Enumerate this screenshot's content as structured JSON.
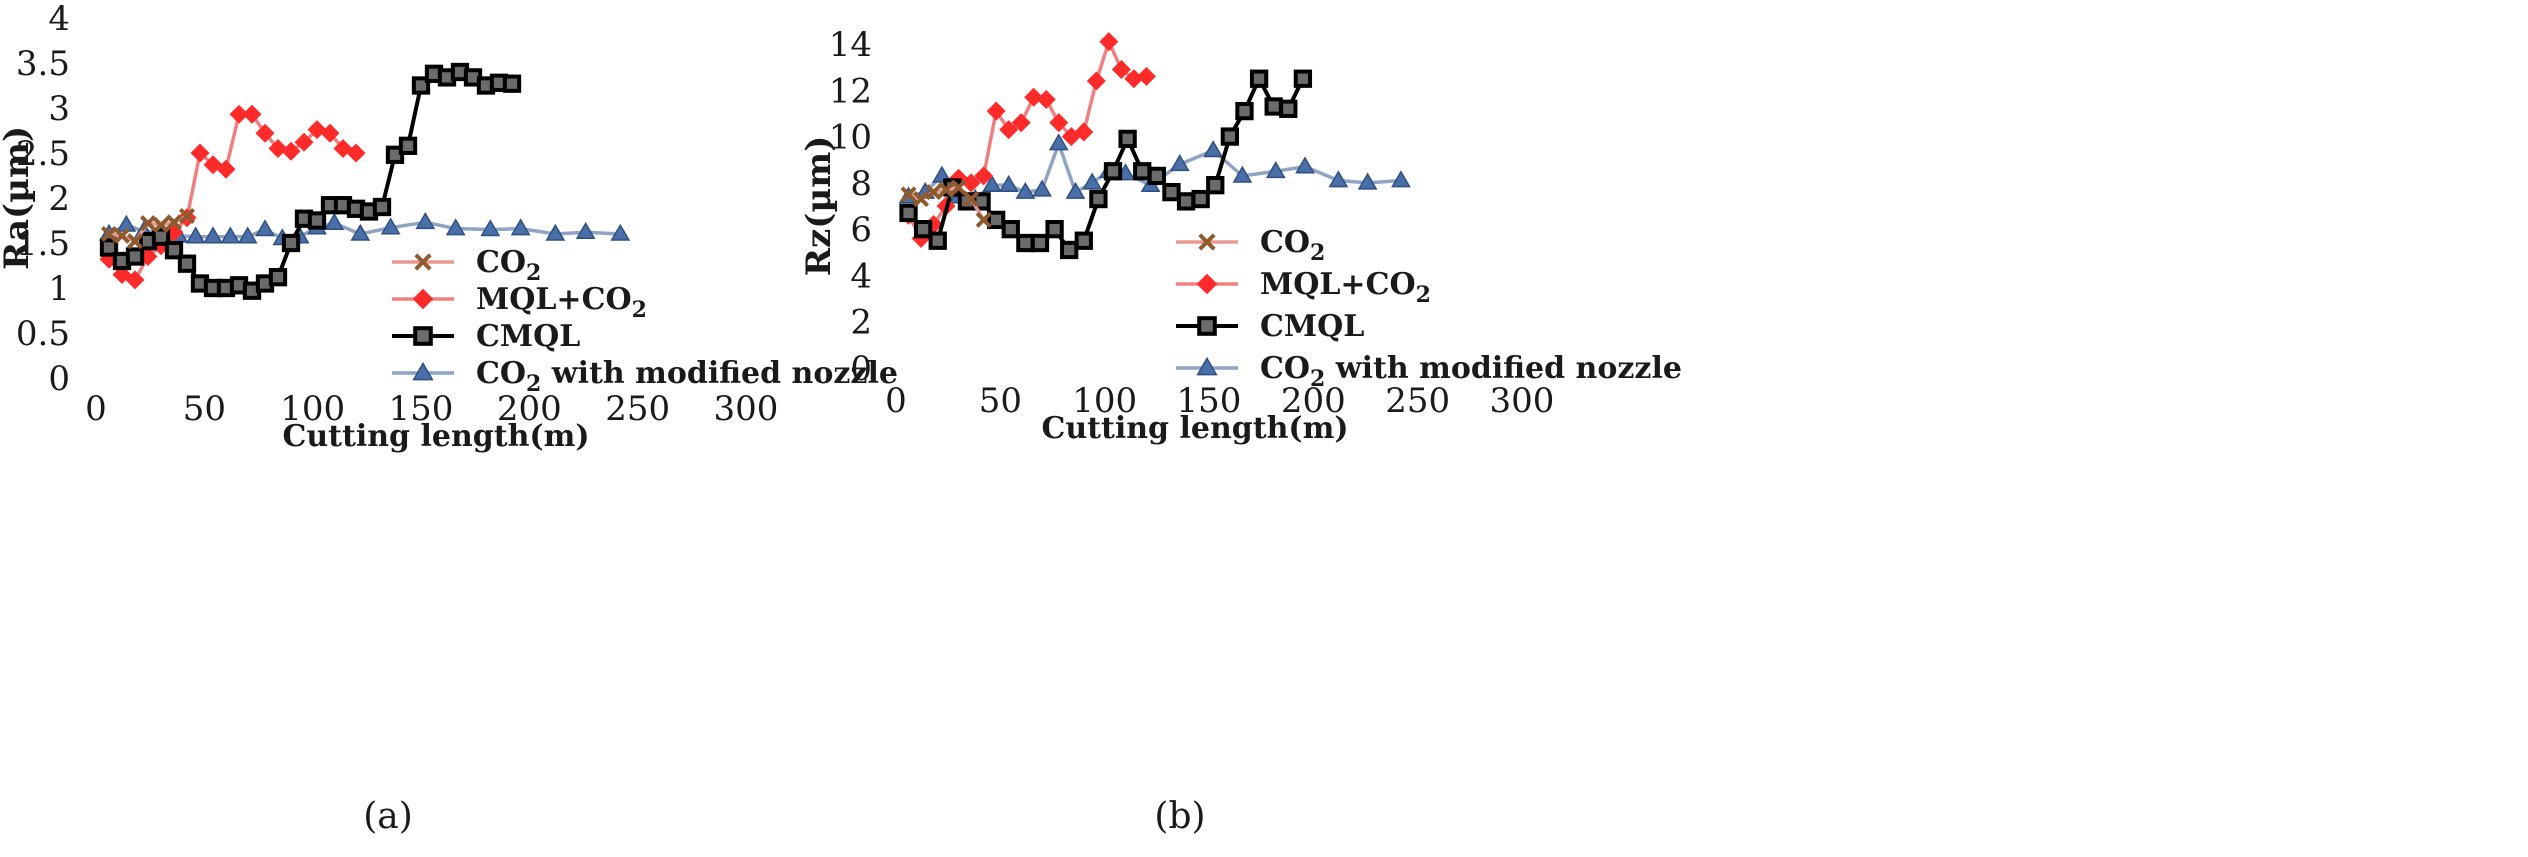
{
  "chart_data": [
    {
      "type": "line",
      "caption": "(a)",
      "ylabel": "Ra(µm)",
      "xlabel": "Cutting length(m)",
      "xlim": [
        0,
        300
      ],
      "ylim": [
        0,
        4
      ],
      "xticks": [
        0,
        50,
        100,
        150,
        200,
        250,
        300
      ],
      "yticks": [
        0,
        0.5,
        1,
        1.5,
        2,
        2.5,
        3,
        3.5,
        4
      ],
      "ytick_labels": [
        "0",
        "0.5",
        "1",
        "1.5",
        "2",
        "2.5",
        "3",
        "3.5",
        "4"
      ],
      "grid": false,
      "legend_position": "center-right",
      "series": [
        {
          "name": "CO2",
          "label_main": "CO",
          "label_sub": "2",
          "label_after": "",
          "label_suffix": "",
          "color": "#c0783e",
          "marker": "x",
          "x": [
            6,
            12,
            18,
            24,
            30,
            36,
            42
          ],
          "y": [
            1.6,
            1.58,
            1.52,
            1.72,
            1.7,
            1.73,
            1.8
          ]
        },
        {
          "name": "MQL+CO2",
          "label_main": "MQL+CO",
          "label_sub": "2",
          "label_after": "",
          "label_suffix": "",
          "color": "#ff2a2a",
          "marker": "diamond",
          "x": [
            6,
            12,
            18,
            24,
            30,
            36,
            42,
            48,
            54,
            60,
            66,
            72,
            78,
            84,
            90,
            96,
            102,
            108,
            114,
            120
          ],
          "y": [
            1.32,
            1.15,
            1.09,
            1.35,
            1.47,
            1.62,
            1.78,
            2.5,
            2.37,
            2.32,
            2.93,
            2.93,
            2.72,
            2.55,
            2.52,
            2.62,
            2.76,
            2.72,
            2.55,
            2.5
          ]
        },
        {
          "name": "CMQL",
          "label_main": "CMQL",
          "label_sub": "",
          "label_after": "",
          "label_suffix": "",
          "color": "#111111",
          "marker": "square",
          "x": [
            6,
            12,
            18,
            24,
            30,
            36,
            42,
            48,
            54,
            60,
            66,
            72,
            78,
            84,
            90,
            96,
            102,
            108,
            114,
            120,
            126,
            132,
            138,
            144,
            150,
            156,
            162,
            168,
            174,
            180,
            186,
            192
          ],
          "y": [
            1.45,
            1.3,
            1.35,
            1.52,
            1.57,
            1.42,
            1.27,
            1.05,
            1.0,
            1.0,
            1.03,
            0.97,
            1.05,
            1.12,
            1.5,
            1.77,
            1.75,
            1.92,
            1.92,
            1.88,
            1.85,
            1.9,
            2.48,
            2.58,
            3.25,
            3.38,
            3.34,
            3.4,
            3.34,
            3.25,
            3.28,
            3.27
          ]
        },
        {
          "name": "CO2 with modified nozzle",
          "label_main": "CO",
          "label_sub": "2",
          "label_after": " with modified nozzle",
          "label_suffix": "",
          "color": "#4f6fa0",
          "marker": "triangle",
          "x": [
            6,
            14,
            22,
            30,
            38,
            46,
            54,
            62,
            70,
            78,
            86,
            94,
            102,
            110,
            122,
            136,
            152,
            166,
            182,
            196,
            212,
            226,
            242
          ],
          "y": [
            1.6,
            1.7,
            1.63,
            1.62,
            1.58,
            1.57,
            1.57,
            1.57,
            1.57,
            1.65,
            1.55,
            1.57,
            1.67,
            1.72,
            1.6,
            1.67,
            1.73,
            1.66,
            1.65,
            1.66,
            1.6,
            1.62,
            1.6
          ]
        }
      ]
    },
    {
      "type": "line",
      "caption": "(b)",
      "ylabel": "Rz(µm)",
      "xlabel": "Cutting length(m)",
      "xlim": [
        0,
        300
      ],
      "ylim": [
        0,
        14
      ],
      "xticks": [
        0,
        50,
        100,
        150,
        200,
        250,
        300
      ],
      "yticks": [
        0,
        2,
        4,
        6,
        8,
        10,
        12,
        14
      ],
      "ytick_labels": [
        "0",
        "2",
        "4",
        "6",
        "8",
        "10",
        "12",
        "14"
      ],
      "grid": false,
      "legend_position": "center-right",
      "series": [
        {
          "name": "CO2",
          "label_main": "CO",
          "label_sub": "2",
          "label_after": "",
          "label_suffix": "",
          "color": "#c0783e",
          "marker": "x",
          "x": [
            6,
            12,
            18,
            24,
            30,
            36,
            42
          ],
          "y": [
            7.5,
            7.3,
            7.6,
            7.7,
            7.8,
            7.3,
            6.4
          ]
        },
        {
          "name": "MQL+CO2",
          "label_main": "MQL+CO",
          "label_sub": "2",
          "label_after": "",
          "label_suffix": "",
          "color": "#ff2a2a",
          "marker": "diamond",
          "x": [
            6,
            12,
            18,
            24,
            30,
            36,
            42,
            48,
            54,
            60,
            66,
            72,
            78,
            84,
            90,
            96,
            102,
            108,
            114,
            120
          ],
          "y": [
            6.6,
            5.6,
            6.2,
            7.0,
            8.2,
            8.0,
            8.3,
            11.1,
            10.3,
            10.6,
            11.7,
            11.6,
            10.6,
            10.0,
            10.2,
            12.4,
            14.1,
            12.9,
            12.5,
            12.6
          ]
        },
        {
          "name": "CMQL",
          "label_main": "CMQL",
          "label_sub": "",
          "label_after": "",
          "label_suffix": "",
          "color": "#111111",
          "marker": "square",
          "x": [
            6,
            13,
            20,
            27,
            34,
            41,
            48,
            55,
            62,
            69,
            76,
            83,
            90,
            97,
            104,
            111,
            118,
            125,
            132,
            139,
            146,
            153,
            160,
            167,
            174,
            181,
            188,
            195
          ],
          "y": [
            6.7,
            6.0,
            5.5,
            7.8,
            7.2,
            7.2,
            6.4,
            6.0,
            5.4,
            5.4,
            6.0,
            5.1,
            5.5,
            7.3,
            8.5,
            9.9,
            8.5,
            8.3,
            7.6,
            7.2,
            7.3,
            7.9,
            10.0,
            11.1,
            12.5,
            11.3,
            11.2,
            12.5
          ]
        },
        {
          "name": "CO2 with modified nozzle",
          "label_main": "CO",
          "label_sub": "2",
          "label_after": " with modified nozzle",
          "label_suffix": "",
          "color": "#4f6fa0",
          "marker": "triangle",
          "x": [
            6,
            14,
            22,
            30,
            38,
            46,
            54,
            62,
            70,
            78,
            86,
            94,
            102,
            110,
            122,
            136,
            152,
            166,
            182,
            196,
            212,
            226,
            242
          ],
          "y": [
            7.4,
            7.6,
            8.3,
            7.4,
            7.3,
            7.9,
            7.9,
            7.6,
            7.7,
            9.7,
            7.6,
            8.0,
            8.5,
            8.4,
            7.9,
            8.8,
            9.4,
            8.3,
            8.5,
            8.7,
            8.1,
            8.0,
            8.1
          ]
        }
      ]
    }
  ]
}
